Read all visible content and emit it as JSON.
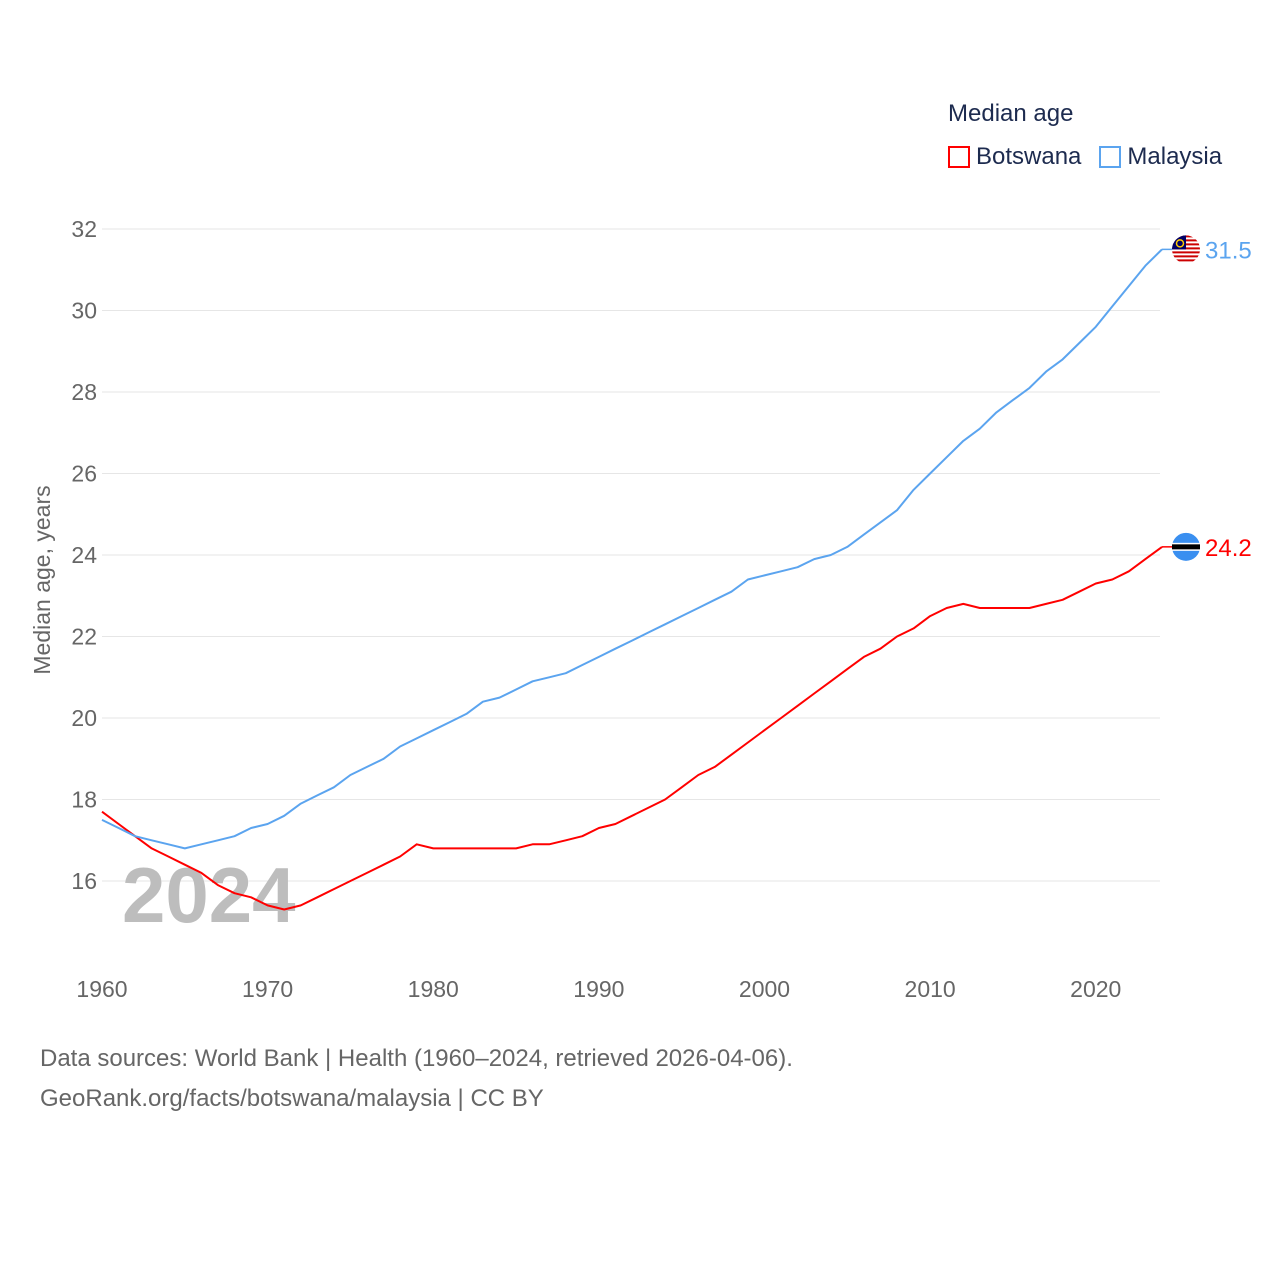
{
  "chart_data": {
    "type": "line",
    "title": "",
    "legend_title": "Median age",
    "legend_placement": "top-right",
    "xlabel": "",
    "ylabel": "Median age, years",
    "xlim": [
      1960,
      2024
    ],
    "ylim": [
      14.3,
      32
    ],
    "x_ticks": [
      1960,
      1970,
      1980,
      1990,
      2000,
      2010,
      2020
    ],
    "y_ticks": [
      16,
      18,
      20,
      22,
      24,
      26,
      28,
      30,
      32
    ],
    "grid": true,
    "watermark_year": "2024",
    "x": [
      1960,
      1961,
      1962,
      1963,
      1964,
      1965,
      1966,
      1967,
      1968,
      1969,
      1970,
      1971,
      1972,
      1973,
      1974,
      1975,
      1976,
      1977,
      1978,
      1979,
      1980,
      1981,
      1982,
      1983,
      1984,
      1985,
      1986,
      1987,
      1988,
      1989,
      1990,
      1991,
      1992,
      1993,
      1994,
      1995,
      1996,
      1997,
      1998,
      1999,
      2000,
      2001,
      2002,
      2003,
      2004,
      2005,
      2006,
      2007,
      2008,
      2009,
      2010,
      2011,
      2012,
      2013,
      2014,
      2015,
      2016,
      2017,
      2018,
      2019,
      2020,
      2021,
      2022,
      2023,
      2024
    ],
    "series": [
      {
        "name": "Botswana",
        "color": "#ff0000",
        "end_label": "24.2",
        "values": [
          17.7,
          17.4,
          17.1,
          16.8,
          16.6,
          16.4,
          16.2,
          15.9,
          15.7,
          15.6,
          15.4,
          15.3,
          15.4,
          15.6,
          15.8,
          16.0,
          16.2,
          16.4,
          16.6,
          16.9,
          16.8,
          16.8,
          16.8,
          16.8,
          16.8,
          16.8,
          16.9,
          16.9,
          17.0,
          17.1,
          17.3,
          17.4,
          17.6,
          17.8,
          18.0,
          18.3,
          18.6,
          18.8,
          19.1,
          19.4,
          19.7,
          20.0,
          20.3,
          20.6,
          20.9,
          21.2,
          21.5,
          21.7,
          22.0,
          22.2,
          22.5,
          22.7,
          22.8,
          22.7,
          22.7,
          22.7,
          22.7,
          22.8,
          22.9,
          23.1,
          23.3,
          23.4,
          23.6,
          23.9,
          24.2
        ]
      },
      {
        "name": "Malaysia",
        "color": "#5ba4ef",
        "end_label": "31.5",
        "values": [
          17.5,
          17.3,
          17.1,
          17.0,
          16.9,
          16.8,
          16.9,
          17.0,
          17.1,
          17.3,
          17.4,
          17.6,
          17.9,
          18.1,
          18.3,
          18.6,
          18.8,
          19.0,
          19.3,
          19.5,
          19.7,
          19.9,
          20.1,
          20.4,
          20.5,
          20.7,
          20.9,
          21.0,
          21.1,
          21.3,
          21.5,
          21.7,
          21.9,
          22.1,
          22.3,
          22.5,
          22.7,
          22.9,
          23.1,
          23.4,
          23.5,
          23.6,
          23.7,
          23.9,
          24.0,
          24.2,
          24.5,
          24.8,
          25.1,
          25.6,
          26.0,
          26.4,
          26.8,
          27.1,
          27.5,
          27.8,
          28.1,
          28.5,
          28.8,
          29.2,
          29.6,
          30.1,
          30.6,
          31.1,
          31.5
        ]
      }
    ]
  },
  "footer": {
    "sources": "Data sources: World Bank | Health (1960–2024, retrieved 2026-04-06).",
    "link": "GeoRank.org/facts/botswana/malaysia | CC BY"
  }
}
